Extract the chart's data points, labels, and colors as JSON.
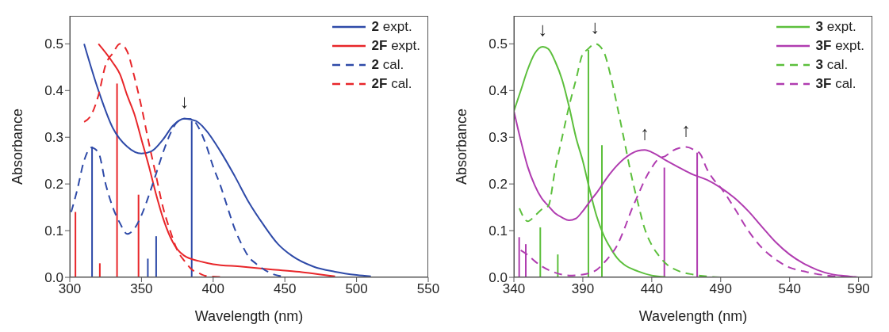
{
  "chart_data": [
    {
      "type": "line",
      "xlabel": "Wavelength (nm)",
      "ylabel": "Absorbance",
      "xlim": [
        300,
        550
      ],
      "xticks": [
        300,
        350,
        400,
        450,
        500,
        550
      ],
      "ylim": [
        0,
        0.56
      ],
      "yticks": [
        {
          "value": 0,
          "label": "0.0"
        },
        0.1,
        0.2,
        0.3,
        0.4,
        0.5
      ],
      "legend": "top right",
      "series": [
        {
          "name": "2 expt.",
          "color": "#2e4aa8",
          "line_style": "solid",
          "x": [
            310,
            320,
            330,
            340,
            350,
            357,
            365,
            372,
            380,
            388,
            395,
            405,
            415,
            425,
            435,
            445,
            455,
            470,
            485,
            500,
            510
          ],
          "values": [
            0.5,
            0.4,
            0.32,
            0.28,
            0.265,
            0.27,
            0.295,
            0.325,
            0.34,
            0.335,
            0.315,
            0.27,
            0.217,
            0.16,
            0.113,
            0.072,
            0.046,
            0.023,
            0.012,
            0.005,
            0.002
          ]
        },
        {
          "name": "2F expt.",
          "color": "#e8262a",
          "line_style": "solid",
          "x": [
            320,
            330,
            335,
            340,
            345,
            350,
            355,
            360,
            365,
            370,
            375,
            380,
            390,
            400,
            420,
            440,
            460,
            475,
            485
          ],
          "values": [
            0.5,
            0.46,
            0.435,
            0.39,
            0.35,
            0.295,
            0.24,
            0.18,
            0.127,
            0.087,
            0.06,
            0.046,
            0.035,
            0.028,
            0.023,
            0.017,
            0.012,
            0.006,
            0.002
          ]
        },
        {
          "name": "2 cal.",
          "color": "#2e4aa8",
          "line_style": "dashed",
          "x": [
            301,
            305,
            310,
            315,
            320,
            325,
            330,
            335,
            340,
            345,
            350,
            355,
            360,
            365,
            370,
            375,
            380,
            385,
            390,
            395,
            400,
            405,
            410,
            415,
            420,
            425,
            430,
            440,
            450
          ],
          "values": [
            0.14,
            0.185,
            0.25,
            0.278,
            0.267,
            0.2,
            0.15,
            0.116,
            0.093,
            0.104,
            0.133,
            0.174,
            0.22,
            0.267,
            0.307,
            0.333,
            0.34,
            0.339,
            0.32,
            0.284,
            0.237,
            0.197,
            0.15,
            0.104,
            0.07,
            0.043,
            0.029,
            0.009,
            0.001
          ]
        },
        {
          "name": "2F cal.",
          "color": "#e8262a",
          "line_style": "dashed",
          "x": [
            310,
            315,
            320,
            325,
            330,
            335,
            340,
            345,
            350,
            355,
            360,
            365,
            370,
            375,
            380,
            385,
            390,
            395,
            405
          ],
          "values": [
            0.333,
            0.348,
            0.39,
            0.455,
            0.48,
            0.5,
            0.484,
            0.43,
            0.365,
            0.29,
            0.22,
            0.15,
            0.1,
            0.058,
            0.035,
            0.017,
            0.009,
            0.003,
            0.001
          ]
        },
        {
          "type": "bar",
          "color": "#e8262a",
          "x": [
            304,
            321,
            333,
            348
          ],
          "values": [
            0.14,
            0.03,
            0.415,
            0.177
          ]
        },
        {
          "type": "bar",
          "color": "#2e4aa8",
          "x": [
            315.5,
            354.4,
            360.2,
            385
          ],
          "values": [
            0.28,
            0.04,
            0.088,
            0.335
          ]
        }
      ],
      "annotations": [
        {
          "text": "↓",
          "x": 380,
          "y": 0.34
        }
      ]
    },
    {
      "type": "line",
      "xlabel": "Wavelength (nm)",
      "ylabel": "Absorbance",
      "xlim": [
        340,
        600
      ],
      "xticks": [
        340,
        390,
        440,
        490,
        540,
        590
      ],
      "ylim": [
        0,
        0.56
      ],
      "yticks": [
        {
          "value": 0,
          "label": "0.0"
        },
        0.1,
        0.2,
        0.3,
        0.4,
        0.5
      ],
      "legend": "top right",
      "series": [
        {
          "name": "3 expt.",
          "color": "#5cbf3c",
          "line_style": "solid",
          "x": [
            340,
            345,
            350,
            355,
            361,
            365,
            370,
            375,
            380,
            385,
            390,
            395,
            400,
            405,
            410,
            415,
            420,
            430,
            440,
            450
          ],
          "values": [
            0.356,
            0.4,
            0.445,
            0.479,
            0.494,
            0.489,
            0.462,
            0.423,
            0.366,
            0.3,
            0.249,
            0.187,
            0.131,
            0.091,
            0.063,
            0.041,
            0.027,
            0.013,
            0.004,
            0.001
          ]
        },
        {
          "name": "3F expt.",
          "color": "#b03cb0",
          "line_style": "solid",
          "x": [
            340,
            345,
            350,
            355,
            360,
            365,
            370,
            375,
            380,
            385,
            390,
            395,
            400,
            410,
            420,
            430,
            435,
            440,
            450,
            460,
            470,
            480,
            490,
            500,
            510,
            520,
            530,
            540,
            550,
            560,
            570,
            580,
            590
          ],
          "values": [
            0.356,
            0.293,
            0.237,
            0.198,
            0.17,
            0.153,
            0.137,
            0.128,
            0.122,
            0.126,
            0.142,
            0.162,
            0.181,
            0.223,
            0.254,
            0.271,
            0.273,
            0.268,
            0.251,
            0.235,
            0.22,
            0.209,
            0.192,
            0.17,
            0.142,
            0.108,
            0.075,
            0.049,
            0.03,
            0.016,
            0.007,
            0.003,
            0
          ]
        },
        {
          "name": "3 cal.",
          "color": "#5cbf3c",
          "line_style": "dashed",
          "x": [
            344,
            350,
            355,
            360,
            365,
            370,
            375,
            380,
            385,
            390,
            393,
            399,
            405,
            410,
            415,
            420,
            425,
            430,
            435,
            440,
            445,
            450,
            460,
            470,
            480,
            490
          ],
          "values": [
            0.148,
            0.12,
            0.131,
            0.145,
            0.153,
            0.232,
            0.3,
            0.366,
            0.423,
            0.479,
            0.487,
            0.5,
            0.484,
            0.434,
            0.366,
            0.294,
            0.221,
            0.159,
            0.103,
            0.069,
            0.047,
            0.03,
            0.013,
            0.006,
            0.002,
            0
          ]
        },
        {
          "name": "3F cal.",
          "color": "#b03cb0",
          "line_style": "dashed",
          "x": [
            345,
            350,
            355,
            360,
            370,
            380,
            390,
            400,
            405,
            410,
            415,
            420,
            425,
            430,
            435,
            440,
            445,
            450,
            455,
            460,
            465,
            470,
            475,
            480,
            485,
            490,
            500,
            510,
            520,
            530,
            540,
            550,
            560,
            570,
            580,
            590
          ],
          "values": [
            0.058,
            0.048,
            0.035,
            0.024,
            0.01,
            0.004,
            0.006,
            0.016,
            0.03,
            0.047,
            0.069,
            0.103,
            0.142,
            0.176,
            0.209,
            0.235,
            0.254,
            0.26,
            0.271,
            0.277,
            0.279,
            0.274,
            0.265,
            0.232,
            0.209,
            0.192,
            0.148,
            0.1,
            0.063,
            0.038,
            0.021,
            0.013,
            0.007,
            0.003,
            0.002,
            0
          ]
        },
        {
          "type": "bar",
          "color": "#5cbf3c",
          "x": [
            359.2,
            371.9,
            394.1,
            403.9
          ],
          "values": [
            0.107,
            0.049,
            0.487,
            0.283
          ]
        },
        {
          "type": "bar",
          "color": "#b03cb0",
          "x": [
            343.8,
            348.6,
            449.1,
            472.9
          ],
          "values": [
            0.086,
            0.071,
            0.235,
            0.267
          ]
        }
      ],
      "annotations": [
        {
          "text": "↓",
          "x": 361,
          "y": 0.494
        },
        {
          "text": "↓",
          "x": 399,
          "y": 0.5
        },
        {
          "text": "↑",
          "x": 435,
          "y": 0.273
        },
        {
          "text": "↑",
          "x": 465,
          "y": 0.279
        }
      ]
    }
  ]
}
